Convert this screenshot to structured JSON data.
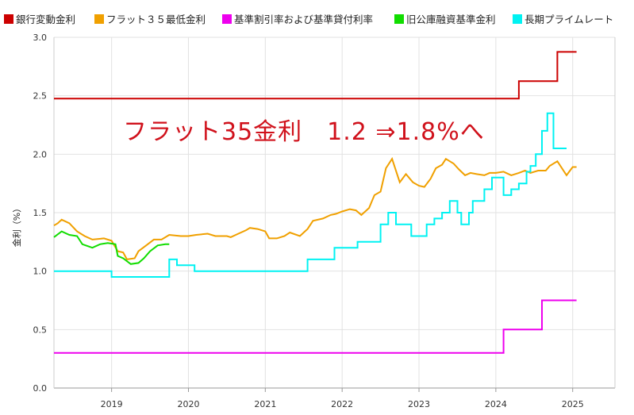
{
  "chart_data": {
    "type": "line",
    "ylabel": "金利（%）",
    "ylim": [
      0,
      3
    ],
    "yticks": [
      "0.0",
      "0.5",
      "1.0",
      "1.5",
      "2.0",
      "2.5",
      "3.0"
    ],
    "xlim": [
      2018.25,
      2025.55
    ],
    "xticks": [
      {
        "value": 2019.0,
        "label": "2019"
      },
      {
        "value": 2020.0,
        "label": "2020"
      },
      {
        "value": 2021.0,
        "label": "2021"
      },
      {
        "value": 2022.0,
        "label": "2022"
      },
      {
        "value": 2023.0,
        "label": "2023"
      },
      {
        "value": 2024.0,
        "label": "2024"
      },
      {
        "value": 2025.0,
        "label": "2025"
      }
    ],
    "grid": true,
    "legend_position": "top",
    "annotation": "フラット35金利　1.2 ⇒1.8%へ",
    "series": [
      {
        "name": "銀行変動金利",
        "color": "#cc0000",
        "points": [
          [
            2018.25,
            2.475
          ],
          [
            2024.3,
            2.475
          ],
          [
            2024.3,
            2.625
          ],
          [
            2024.8,
            2.625
          ],
          [
            2024.8,
            2.875
          ],
          [
            2025.05,
            2.875
          ]
        ]
      },
      {
        "name": "フラット３５最低金利",
        "color": "#f0a000",
        "points": [
          [
            2018.25,
            1.39
          ],
          [
            2018.3,
            1.41
          ],
          [
            2018.35,
            1.44
          ],
          [
            2018.45,
            1.41
          ],
          [
            2018.55,
            1.34
          ],
          [
            2018.65,
            1.3
          ],
          [
            2018.75,
            1.27
          ],
          [
            2018.9,
            1.28
          ],
          [
            2019.0,
            1.26
          ],
          [
            2019.08,
            1.17
          ],
          [
            2019.15,
            1.16
          ],
          [
            2019.2,
            1.1
          ],
          [
            2019.3,
            1.11
          ],
          [
            2019.35,
            1.17
          ],
          [
            2019.45,
            1.22
          ],
          [
            2019.55,
            1.27
          ],
          [
            2019.65,
            1.27
          ],
          [
            2019.75,
            1.31
          ],
          [
            2019.9,
            1.3
          ],
          [
            2020.0,
            1.3
          ],
          [
            2020.1,
            1.31
          ],
          [
            2020.25,
            1.32
          ],
          [
            2020.35,
            1.3
          ],
          [
            2020.5,
            1.3
          ],
          [
            2020.55,
            1.29
          ],
          [
            2020.65,
            1.32
          ],
          [
            2020.75,
            1.35
          ],
          [
            2020.8,
            1.37
          ],
          [
            2020.9,
            1.36
          ],
          [
            2021.0,
            1.34
          ],
          [
            2021.05,
            1.28
          ],
          [
            2021.15,
            1.28
          ],
          [
            2021.25,
            1.3
          ],
          [
            2021.32,
            1.33
          ],
          [
            2021.45,
            1.3
          ],
          [
            2021.55,
            1.36
          ],
          [
            2021.62,
            1.43
          ],
          [
            2021.75,
            1.45
          ],
          [
            2021.85,
            1.48
          ],
          [
            2021.92,
            1.49
          ],
          [
            2022.0,
            1.51
          ],
          [
            2022.1,
            1.53
          ],
          [
            2022.18,
            1.52
          ],
          [
            2022.25,
            1.48
          ],
          [
            2022.35,
            1.54
          ],
          [
            2022.42,
            1.65
          ],
          [
            2022.5,
            1.68
          ],
          [
            2022.57,
            1.88
          ],
          [
            2022.65,
            1.96
          ],
          [
            2022.75,
            1.76
          ],
          [
            2022.83,
            1.83
          ],
          [
            2022.92,
            1.76
          ],
          [
            2023.0,
            1.73
          ],
          [
            2023.07,
            1.72
          ],
          [
            2023.15,
            1.79
          ],
          [
            2023.22,
            1.88
          ],
          [
            2023.3,
            1.91
          ],
          [
            2023.35,
            1.96
          ],
          [
            2023.45,
            1.92
          ],
          [
            2023.52,
            1.87
          ],
          [
            2023.6,
            1.82
          ],
          [
            2023.67,
            1.84
          ],
          [
            2023.75,
            1.83
          ],
          [
            2023.85,
            1.82
          ],
          [
            2023.92,
            1.84
          ],
          [
            2024.0,
            1.84
          ],
          [
            2024.1,
            1.85
          ],
          [
            2024.2,
            1.82
          ],
          [
            2024.3,
            1.84
          ],
          [
            2024.38,
            1.86
          ],
          [
            2024.45,
            1.84
          ],
          [
            2024.55,
            1.86
          ],
          [
            2024.65,
            1.86
          ],
          [
            2024.7,
            1.9
          ],
          [
            2024.8,
            1.94
          ],
          [
            2024.92,
            1.82
          ],
          [
            2025.0,
            1.89
          ],
          [
            2025.05,
            1.89
          ]
        ]
      },
      {
        "name": "基準割引率および基準貸付利率",
        "color": "#ee00ee",
        "points": [
          [
            2018.25,
            0.3
          ],
          [
            2024.1,
            0.3
          ],
          [
            2024.1,
            0.5
          ],
          [
            2024.6,
            0.5
          ],
          [
            2024.6,
            0.75
          ],
          [
            2025.05,
            0.75
          ]
        ]
      },
      {
        "name": "旧公庫融資基準金利",
        "color": "#11dd00",
        "points": [
          [
            2018.25,
            1.29
          ],
          [
            2018.35,
            1.34
          ],
          [
            2018.45,
            1.31
          ],
          [
            2018.55,
            1.3
          ],
          [
            2018.62,
            1.23
          ],
          [
            2018.75,
            1.2
          ],
          [
            2018.85,
            1.23
          ],
          [
            2018.95,
            1.24
          ],
          [
            2019.05,
            1.23
          ],
          [
            2019.08,
            1.13
          ],
          [
            2019.15,
            1.11
          ],
          [
            2019.25,
            1.06
          ],
          [
            2019.35,
            1.07
          ],
          [
            2019.42,
            1.11
          ],
          [
            2019.5,
            1.17
          ],
          [
            2019.6,
            1.22
          ],
          [
            2019.7,
            1.23
          ],
          [
            2019.75,
            1.23
          ]
        ]
      },
      {
        "name": "長期プライムレート",
        "color": "#00f2f2",
        "points": [
          [
            2018.25,
            1.0
          ],
          [
            2019.0,
            1.0
          ],
          [
            2019.0,
            0.95
          ],
          [
            2019.75,
            0.95
          ],
          [
            2019.75,
            1.1
          ],
          [
            2019.85,
            1.1
          ],
          [
            2019.85,
            1.05
          ],
          [
            2020.08,
            1.05
          ],
          [
            2020.08,
            1.0
          ],
          [
            2021.55,
            1.0
          ],
          [
            2021.55,
            1.1
          ],
          [
            2021.9,
            1.1
          ],
          [
            2021.9,
            1.2
          ],
          [
            2022.2,
            1.2
          ],
          [
            2022.2,
            1.25
          ],
          [
            2022.5,
            1.25
          ],
          [
            2022.5,
            1.4
          ],
          [
            2022.6,
            1.4
          ],
          [
            2022.6,
            1.5
          ],
          [
            2022.7,
            1.5
          ],
          [
            2022.7,
            1.4
          ],
          [
            2022.9,
            1.4
          ],
          [
            2022.9,
            1.3
          ],
          [
            2023.1,
            1.3
          ],
          [
            2023.1,
            1.4
          ],
          [
            2023.2,
            1.4
          ],
          [
            2023.2,
            1.45
          ],
          [
            2023.3,
            1.45
          ],
          [
            2023.3,
            1.5
          ],
          [
            2023.4,
            1.5
          ],
          [
            2023.4,
            1.6
          ],
          [
            2023.5,
            1.6
          ],
          [
            2023.5,
            1.5
          ],
          [
            2023.55,
            1.5
          ],
          [
            2023.55,
            1.4
          ],
          [
            2023.65,
            1.4
          ],
          [
            2023.65,
            1.5
          ],
          [
            2023.7,
            1.5
          ],
          [
            2023.7,
            1.6
          ],
          [
            2023.85,
            1.6
          ],
          [
            2023.85,
            1.7
          ],
          [
            2023.95,
            1.7
          ],
          [
            2023.95,
            1.8
          ],
          [
            2024.1,
            1.8
          ],
          [
            2024.1,
            1.65
          ],
          [
            2024.2,
            1.65
          ],
          [
            2024.2,
            1.7
          ],
          [
            2024.3,
            1.7
          ],
          [
            2024.3,
            1.75
          ],
          [
            2024.4,
            1.75
          ],
          [
            2024.4,
            1.85
          ],
          [
            2024.45,
            1.85
          ],
          [
            2024.45,
            1.9
          ],
          [
            2024.52,
            1.9
          ],
          [
            2024.52,
            2.0
          ],
          [
            2024.6,
            2.0
          ],
          [
            2024.6,
            2.2
          ],
          [
            2024.67,
            2.2
          ],
          [
            2024.67,
            2.35
          ],
          [
            2024.75,
            2.35
          ],
          [
            2024.75,
            2.05
          ],
          [
            2024.92,
            2.05
          ]
        ]
      }
    ]
  }
}
